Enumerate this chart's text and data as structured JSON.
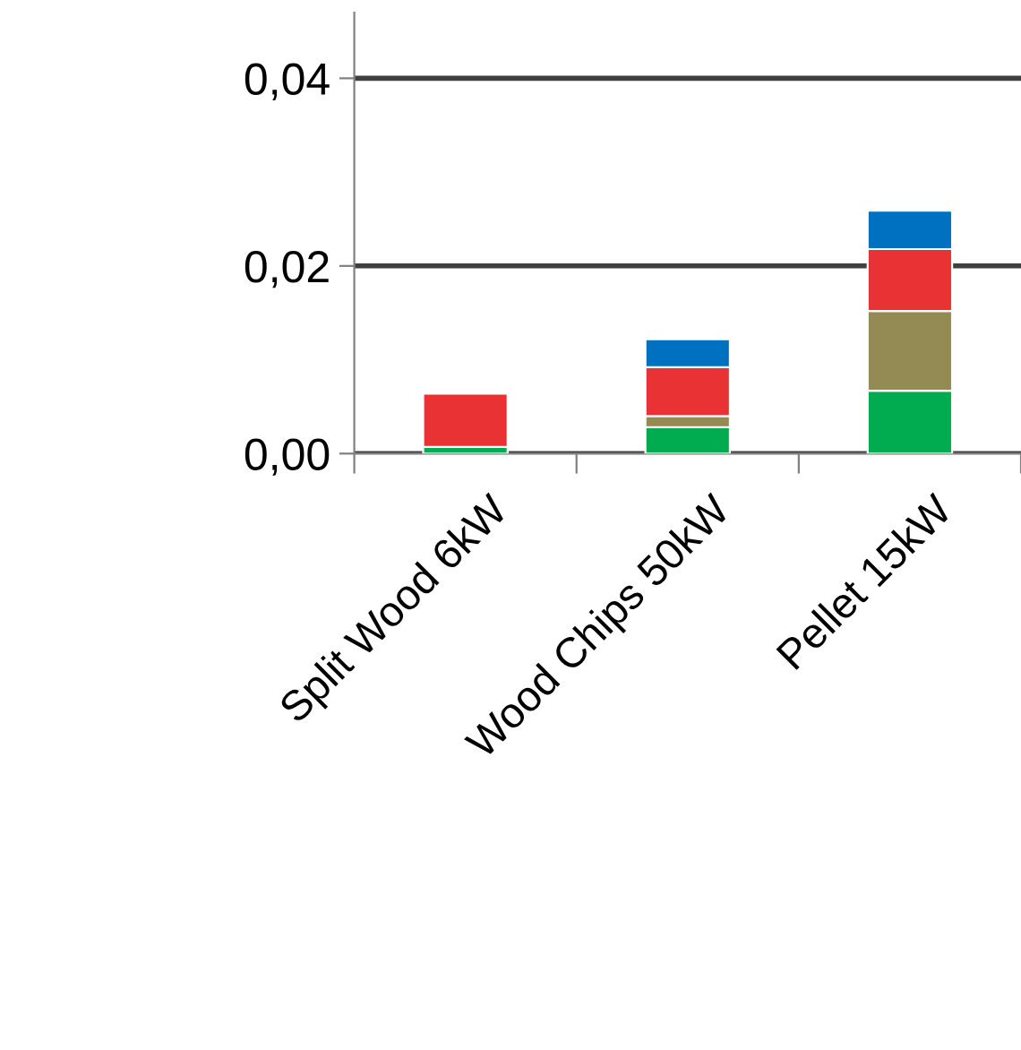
{
  "chart_data": {
    "type": "bar",
    "stacked": true,
    "categories": [
      "Split Wood 6kW",
      "Wood Chips 50kW",
      "Pellet 15kW"
    ],
    "series": [
      {
        "color": "#00ac4f",
        "values": [
          0.0007,
          0.0028,
          0.0067
        ]
      },
      {
        "color": "#948a54",
        "values": [
          null,
          0.0012,
          0.0085
        ]
      },
      {
        "color": "#e83234",
        "values": [
          0.0057,
          0.0052,
          0.0066
        ]
      },
      {
        "color": "#0070c0",
        "values": [
          null,
          0.003,
          0.0041
        ]
      }
    ],
    "ylim": [
      0,
      0.047
    ],
    "yticks": [
      {
        "value": 0,
        "label": "0,00"
      },
      {
        "value": 0.02,
        "label": "0,02"
      },
      {
        "value": 0.04,
        "label": "0,04"
      }
    ],
    "grid": "y"
  }
}
